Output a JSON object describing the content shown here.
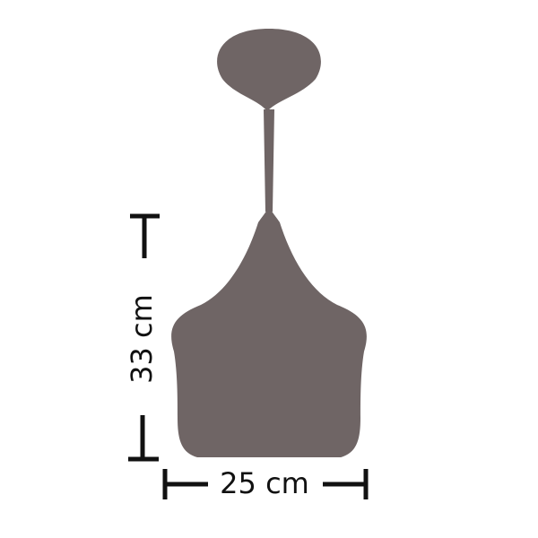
{
  "diagram": {
    "object": "pendant-lamp-silhouette",
    "colors": {
      "lamp": "#6f6565",
      "dimension_lines": "#111111",
      "background": "#ffffff"
    },
    "dimensions": {
      "height_label": "33 cm",
      "width_label": "25 cm"
    }
  }
}
